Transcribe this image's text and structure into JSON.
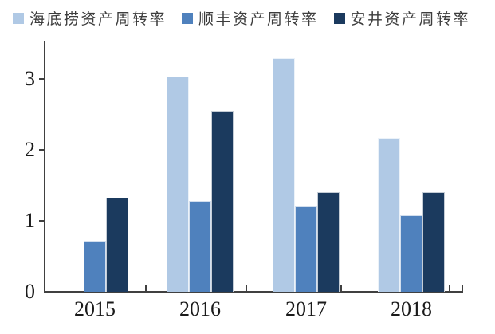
{
  "chart_data": {
    "type": "bar",
    "title": "",
    "xlabel": "",
    "ylabel": "",
    "categories": [
      "2015",
      "2016",
      "2017",
      "2018"
    ],
    "series": [
      {
        "name": "海底捞资产周转率",
        "color": "#b0c9e5",
        "values": [
          null,
          3.03,
          3.29,
          2.17
        ]
      },
      {
        "name": "顺丰资产周转率",
        "color": "#4f81bd",
        "values": [
          0.72,
          1.28,
          1.2,
          1.08
        ]
      },
      {
        "name": "安井资产周转率",
        "color": "#1b3a5e",
        "values": [
          1.33,
          2.55,
          1.4,
          1.4
        ]
      }
    ],
    "ylim": [
      0,
      3.5
    ],
    "yticks": [
      0,
      1,
      2,
      3
    ],
    "grid": false,
    "legend_position": "top",
    "axis_color": "#404040",
    "text_color": "#1a1a1a",
    "legend_text_color": "#3d3d3d",
    "background_color": "#ffffff"
  }
}
